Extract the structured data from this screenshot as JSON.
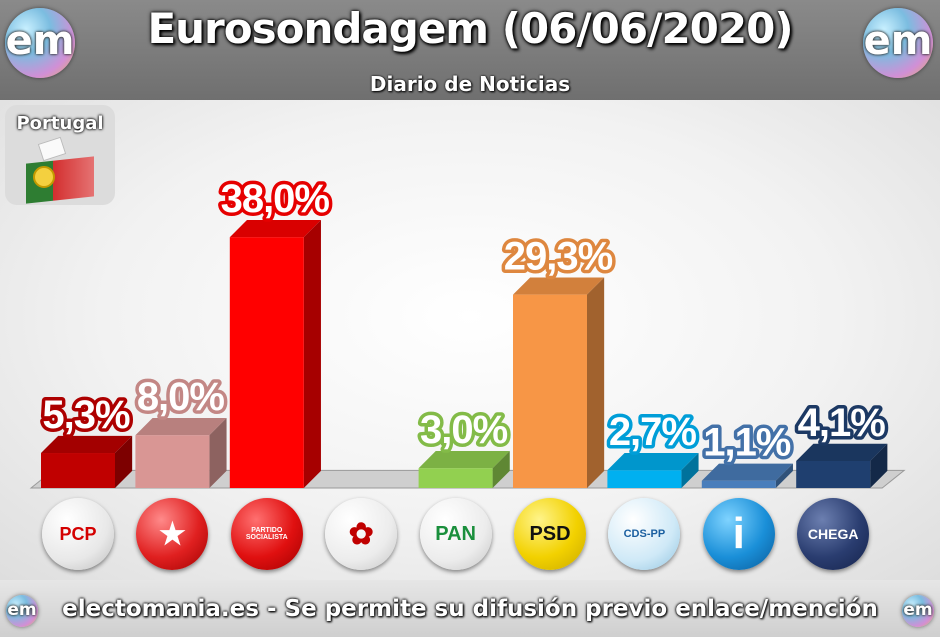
{
  "header": {
    "title": "Eurosondagem (06/06/2020)",
    "subtitle": "Diario de Noticias",
    "logo_text": "em"
  },
  "country": {
    "label": "Portugal"
  },
  "footer": {
    "text": "electomania.es - Se permite su difusión previo enlace/mención"
  },
  "chart_data": {
    "type": "bar",
    "categories": [
      "PCP",
      "BE",
      "PS",
      "PEV",
      "PAN",
      "PSD",
      "CDS-PP",
      "IL",
      "CHEGA"
    ],
    "values": [
      5.3,
      8.0,
      38.0,
      null,
      3.0,
      29.3,
      2.7,
      1.1,
      4.1
    ],
    "labels": [
      "5,3%",
      "8,0%",
      "38,0%",
      "",
      "3,0%",
      "29,3%",
      "2,7%",
      "1,1%",
      "4,1%"
    ],
    "colors": [
      "#c00000",
      "#d99694",
      "#ff0000",
      "#e63c3c",
      "#92d050",
      "#f79646",
      "#00b0f0",
      "#4a7ebb",
      "#1f3f6f"
    ],
    "logo_texts": [
      "PCP",
      "",
      "PARTIDO SOCIALISTA",
      "",
      "PAN",
      "PSD",
      "CDS-PP",
      "i",
      "CHEGA"
    ],
    "ylim": [
      0,
      40
    ],
    "grid": false,
    "legend": "none"
  }
}
